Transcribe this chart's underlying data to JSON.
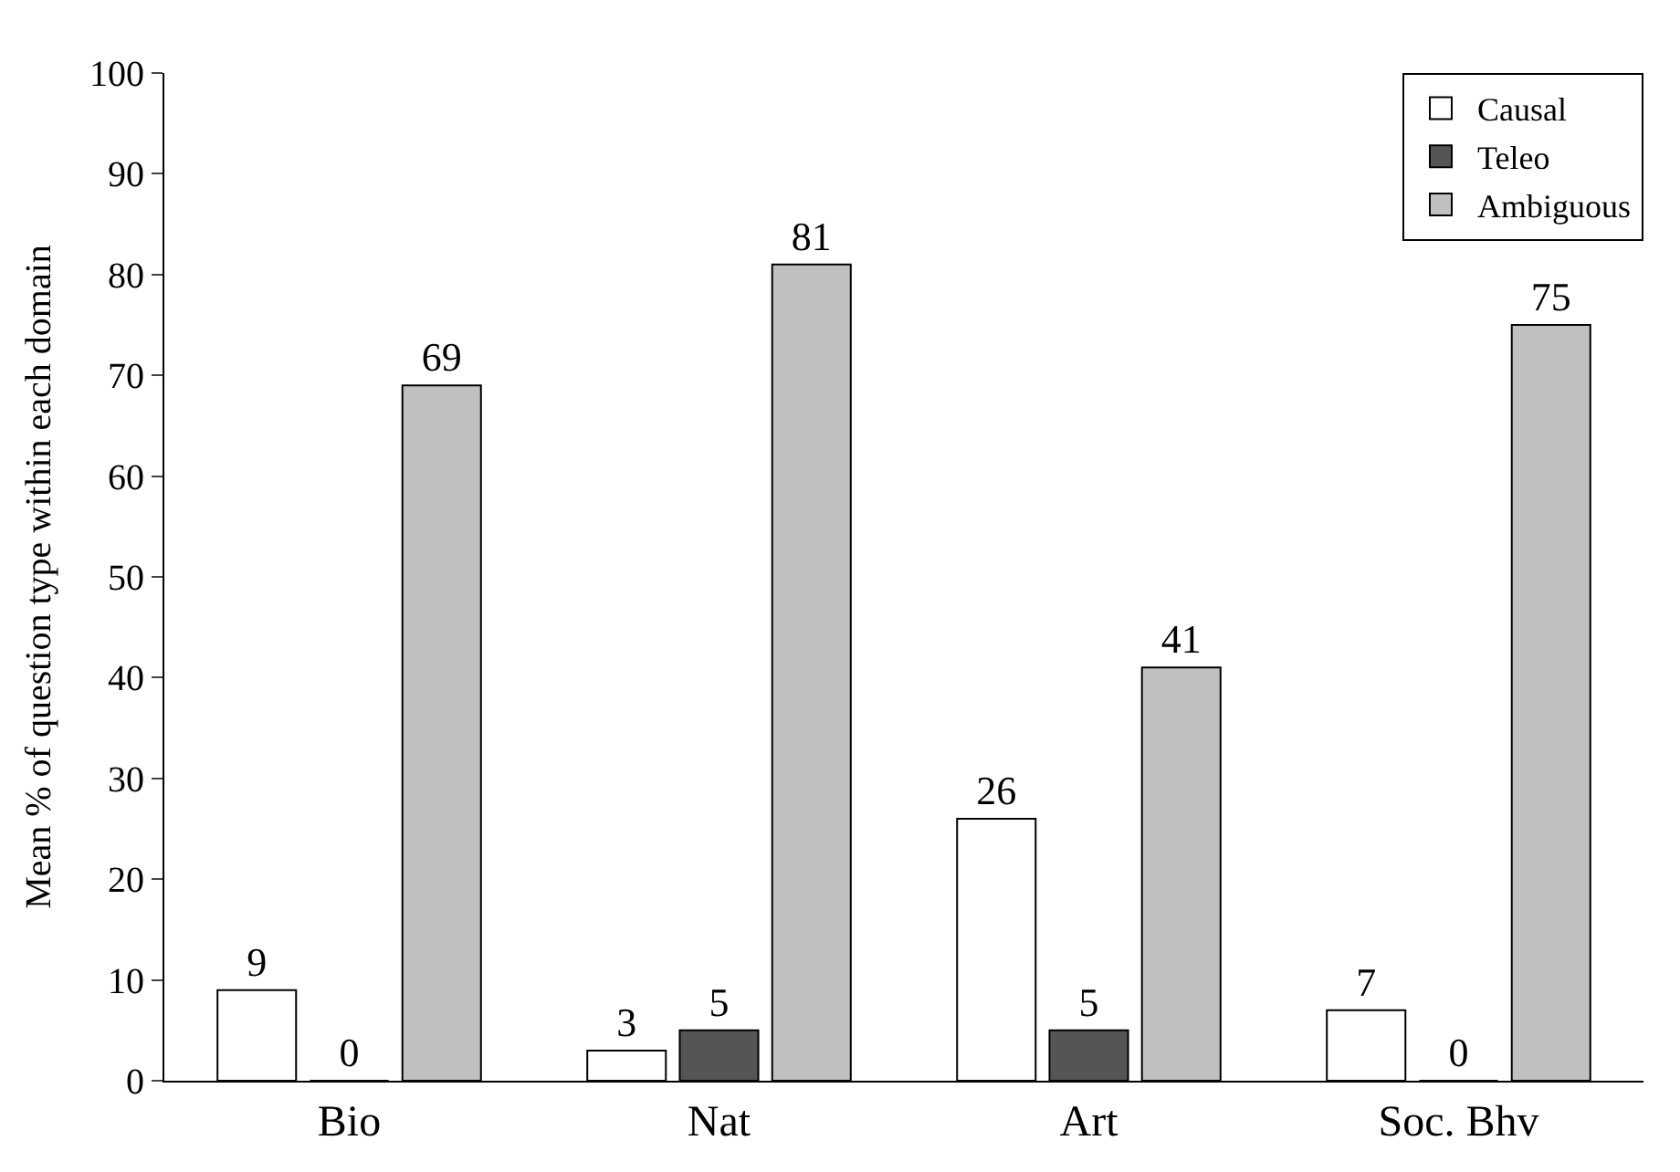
{
  "chart_data": {
    "type": "bar",
    "ylabel": "Mean % of question type within each domain",
    "categories": [
      "Bio",
      "Nat",
      "Art",
      "Soc. Bhv"
    ],
    "series": [
      {
        "name": "Causal",
        "color": "#ffffff",
        "values": [
          9,
          3,
          26,
          7
        ]
      },
      {
        "name": "Teleo",
        "color": "#555555",
        "values": [
          0,
          5,
          5,
          0
        ]
      },
      {
        "name": "Ambiguous",
        "color": "#c0c0c0",
        "values": [
          69,
          81,
          41,
          75
        ]
      }
    ],
    "ylim": [
      0,
      100
    ],
    "yticks": [
      0,
      10,
      20,
      30,
      40,
      50,
      60,
      70,
      80,
      90,
      100
    ],
    "data_labels": true,
    "grid": false,
    "legend": "top right"
  }
}
